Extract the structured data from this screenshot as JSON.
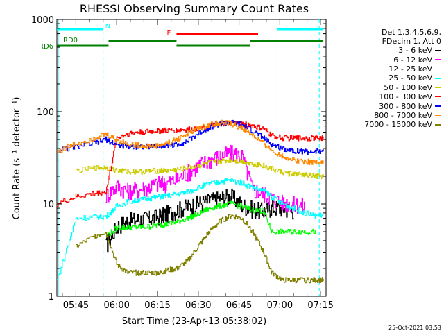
{
  "chart_data": {
    "type": "line",
    "title": "RHESSI Observing Summary Count Rates",
    "xlabel": "Start Time (23-Apr-13 05:38:02)",
    "ylabel": "Count Rate (s⁻¹ detector⁻¹)",
    "yscale": "log",
    "ylim": [
      1,
      1000
    ],
    "xlim_minutes": [
      338.0,
      437.0
    ],
    "x_ticks": [
      "05:45",
      "06:00",
      "06:15",
      "06:30",
      "06:45",
      "07:00",
      "07:15"
    ],
    "y_ticks": [
      "1",
      "10",
      "100",
      "1000"
    ],
    "legend_header": [
      "Det 1,3,4,5,6,9,",
      "FDecim 1, Att 0"
    ],
    "x_minutes_of_day": [
      338,
      345,
      352,
      356,
      360,
      364,
      368,
      372,
      376,
      378,
      382,
      386,
      390,
      394,
      398,
      402,
      406,
      410,
      414,
      417,
      421,
      425,
      429,
      433,
      436
    ],
    "series": [
      {
        "name": "3 - 6 keV",
        "color": "#000000",
        "values": [
          null,
          null,
          null,
          3.5,
          5.8,
          6.6,
          6.8,
          7.0,
          7.4,
          7.8,
          8.6,
          9.4,
          10.2,
          10.8,
          11.6,
          12.2,
          9.8,
          8.8,
          8.4,
          9.2,
          9.0,
          8.6,
          null,
          null,
          null
        ]
      },
      {
        "name": "6 - 12 keV",
        "color": "#ff00ff",
        "values": [
          null,
          null,
          null,
          12.5,
          15.5,
          14.0,
          14.3,
          15.5,
          17.0,
          16.5,
          18.5,
          22.0,
          26.0,
          30.0,
          33.0,
          36.0,
          33.0,
          14.5,
          13.0,
          11.5,
          10.5,
          10.0,
          9.5,
          null,
          null
        ]
      },
      {
        "name": "12 - 25 keV",
        "color": "#00ff00",
        "values": [
          null,
          null,
          null,
          4.5,
          5.5,
          5.6,
          5.6,
          5.7,
          6.0,
          6.0,
          6.4,
          7.0,
          7.8,
          9.0,
          9.6,
          10.0,
          9.4,
          8.6,
          8.4,
          5.0,
          5.0,
          5.0,
          5.0,
          5.0,
          null
        ]
      },
      {
        "name": "25 - 50 keV",
        "color": "#00ffff",
        "values": [
          1.5,
          7.0,
          7.3,
          7.3,
          9.5,
          10.5,
          11.0,
          11.5,
          12.0,
          12.2,
          12.8,
          13.5,
          15.0,
          16.5,
          17.5,
          18.0,
          17.0,
          15.0,
          14.0,
          12.0,
          10.0,
          9.0,
          8.0,
          7.5,
          7.6
        ]
      },
      {
        "name": "50 - 100 keV",
        "color": "#cccc00",
        "values": [
          null,
          23.0,
          24.5,
          25.0,
          23.0,
          22.5,
          22.5,
          22.8,
          23.0,
          23.0,
          23.5,
          24.5,
          26.0,
          28.0,
          29.0,
          30.0,
          29.0,
          27.5,
          26.0,
          24.0,
          22.0,
          21.0,
          20.5,
          20.0,
          20.0
        ]
      },
      {
        "name": "100 - 300 keV",
        "color": "#ff0000",
        "values": [
          10.0,
          12.0,
          13.0,
          13.5,
          52.0,
          58.0,
          60.0,
          61.0,
          62.0,
          62.5,
          63.0,
          64.0,
          66.0,
          70.0,
          74.0,
          76.0,
          74.0,
          70.0,
          65.0,
          55.0,
          52.0,
          52.0,
          52.0,
          52.0,
          52.0
        ]
      },
      {
        "name": "300 - 800 keV",
        "color": "#0000ff",
        "values": [
          38.0,
          42.0,
          46.0,
          50.0,
          44.0,
          42.0,
          42.0,
          42.0,
          42.5,
          43.0,
          44.0,
          48.0,
          58.0,
          68.0,
          74.0,
          76.0,
          72.0,
          62.0,
          52.0,
          44.0,
          40.0,
          38.0,
          37.0,
          37.0,
          38.0
        ]
      },
      {
        "name": "800 - 7000 keV",
        "color": "#ff8800",
        "values": [
          37.0,
          45.0,
          52.0,
          57.0,
          49.0,
          45.0,
          43.0,
          42.0,
          43.0,
          45.0,
          50.0,
          58.0,
          66.0,
          72.0,
          76.0,
          74.0,
          66.0,
          55.0,
          45.0,
          38.0,
          33.0,
          30.0,
          29.0,
          28.5,
          28.5
        ]
      },
      {
        "name": "7000 - 15000 keV",
        "color": "#808000",
        "values": [
          null,
          3.5,
          4.5,
          5.0,
          2.2,
          1.8,
          1.8,
          1.8,
          1.8,
          1.9,
          2.0,
          2.4,
          3.5,
          5.0,
          6.5,
          7.5,
          7.0,
          5.0,
          3.0,
          1.8,
          1.5,
          1.5,
          1.5,
          1.5,
          1.5
        ]
      }
    ],
    "state_bars": [
      {
        "label": "N",
        "color": "#00ffff",
        "segments_minutes": [
          [
            338,
            355
          ],
          [
            419,
            436
          ]
        ]
      },
      {
        "label": "F",
        "color": "#ff0000",
        "segments_minutes": [
          [
            382,
            412
          ]
        ]
      },
      {
        "label": "RD0",
        "color": "#008000",
        "segments_minutes": [
          [
            357,
            382
          ],
          [
            409,
            436
          ]
        ]
      },
      {
        "label": "RD6",
        "color": "#008000",
        "segments_minutes": [
          [
            338,
            357
          ],
          [
            382,
            409
          ]
        ]
      }
    ],
    "event_lines_minutes": [
      {
        "color": "#00ffff",
        "style": "solid",
        "at": 338.5
      },
      {
        "color": "#00ffff",
        "style": "dashed",
        "at": 355
      },
      {
        "color": "#00ffff",
        "style": "solid",
        "at": 419
      },
      {
        "color": "#00ffff",
        "style": "dashed",
        "at": 434.5
      }
    ]
  },
  "footer": {
    "timestamp": "25-Oct-2021 03:53"
  }
}
